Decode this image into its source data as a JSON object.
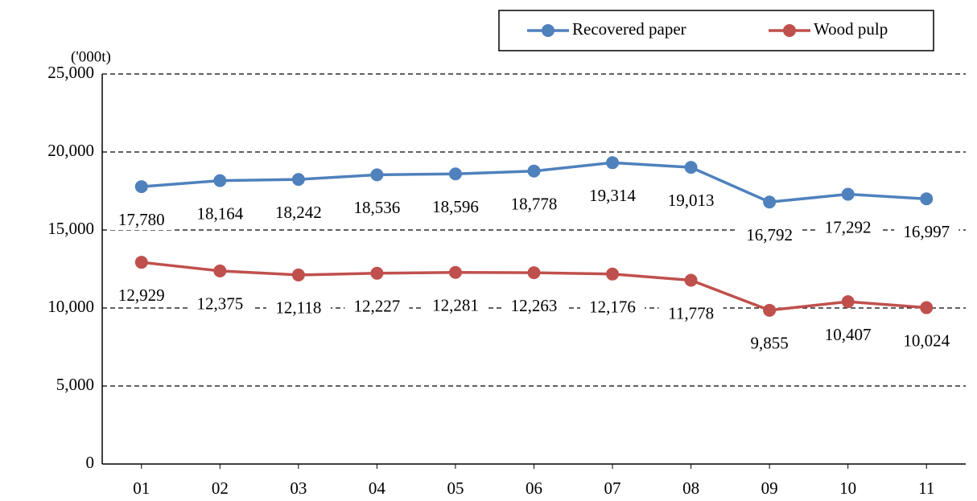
{
  "chart_data": {
    "type": "line",
    "y_unit": "('000t)",
    "categories": [
      "01",
      "02",
      "03",
      "04",
      "05",
      "06",
      "07",
      "08",
      "09",
      "10",
      "11"
    ],
    "series": [
      {
        "name": "Recovered paper",
        "color": "#4f81bd",
        "values": [
          17780,
          18164,
          18242,
          18536,
          18596,
          18778,
          19314,
          19013,
          16792,
          17292,
          16997
        ],
        "value_labels": [
          "17,780",
          "18,164",
          "18,242",
          "18,536",
          "18,596",
          "18,778",
          "19,314",
          "19,013",
          "16,792",
          "17,292",
          "16,997"
        ]
      },
      {
        "name": "Wood pulp",
        "color": "#c0504d",
        "values": [
          12929,
          12375,
          12118,
          12227,
          12281,
          12263,
          12176,
          11778,
          9855,
          10407,
          10024
        ],
        "value_labels": [
          "12,929",
          "12,375",
          "12,118",
          "12,227",
          "12,281",
          "12,263",
          "12,176",
          "11,778",
          "9,855",
          "10,407",
          "10,024"
        ]
      }
    ],
    "ylim": [
      0,
      25000
    ],
    "yticks": [
      0,
      {
        "value": 5000,
        "label": "5,000"
      },
      {
        "value": 10000,
        "label": "10,000"
      },
      {
        "value": 15000,
        "label": "15,000"
      },
      {
        "value": 20000,
        "label": "20,000"
      },
      {
        "value": 25000,
        "label": "25,000"
      }
    ],
    "grid": true,
    "legend": "top-right"
  }
}
